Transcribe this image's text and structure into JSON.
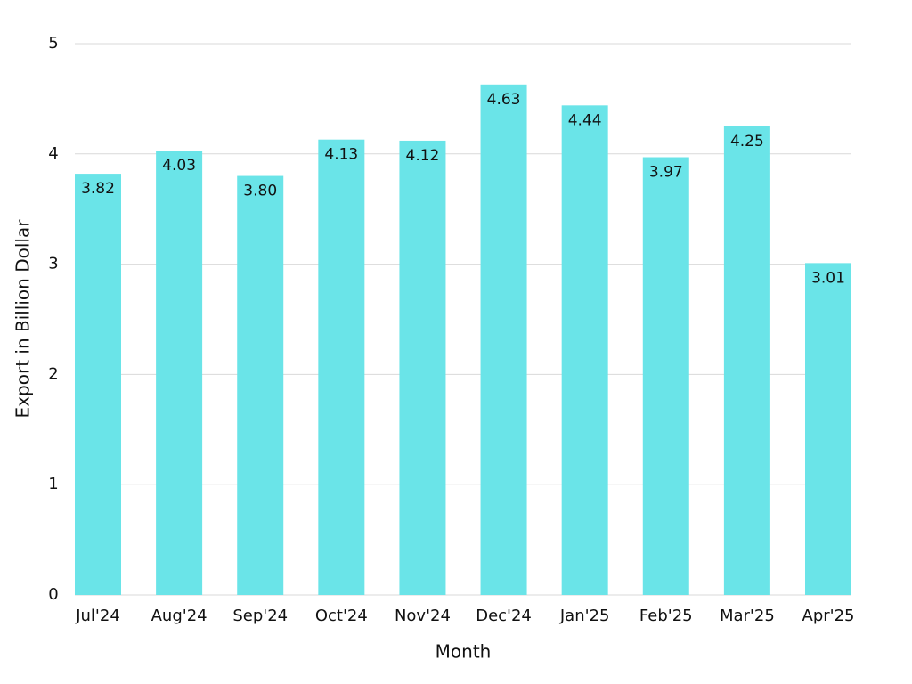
{
  "chart_data": {
    "type": "bar",
    "x_label": "Month",
    "y_label": "Export in Billion Dollar",
    "categories": [
      "Jul'24",
      "Aug'24",
      "Sep'24",
      "Oct'24",
      "Nov'24",
      "Dec'24",
      "Jan'25",
      "Feb'25",
      "Mar'25",
      "Apr'25"
    ],
    "values": [
      3.82,
      4.03,
      3.8,
      4.13,
      4.12,
      4.63,
      4.44,
      3.97,
      4.25,
      3.01
    ],
    "value_labels": [
      "3.82",
      "4.03",
      "3.80",
      "4.13",
      "4.12",
      "4.63",
      "4.44",
      "3.97",
      "4.25",
      "3.01"
    ],
    "color": "#6ae4e8",
    "ylim": [
      0,
      5
    ],
    "yticks": [
      0,
      1,
      2,
      3,
      4,
      5
    ],
    "grid": true
  }
}
